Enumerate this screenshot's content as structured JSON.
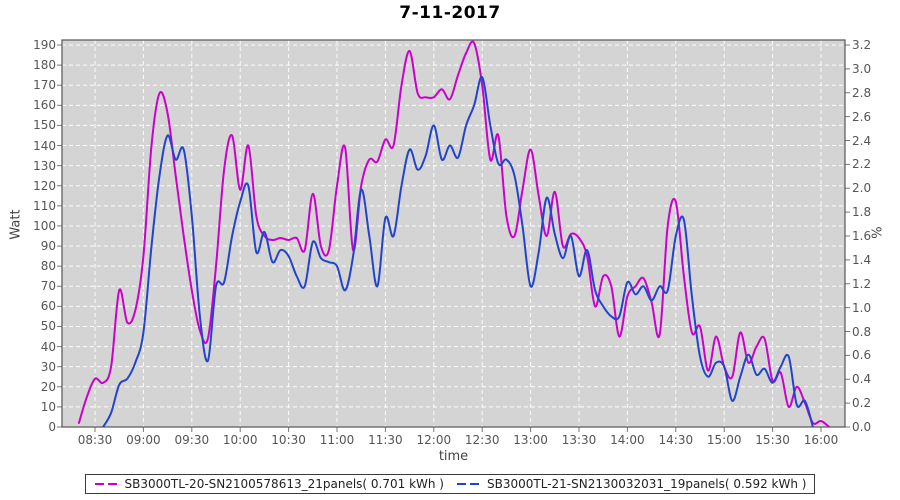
{
  "title": "7-11-2017",
  "axes": {
    "left_label": "Watt",
    "right_label": "%",
    "x_label": "time",
    "left_ticks": [
      "0",
      "10",
      "20",
      "30",
      "40",
      "50",
      "60",
      "70",
      "80",
      "90",
      "100",
      "110",
      "120",
      "130",
      "140",
      "150",
      "160",
      "170",
      "180",
      "190"
    ],
    "right_ticks": [
      "0.0",
      "0.2",
      "0.4",
      "0.6",
      "0.8",
      "1.0",
      "1.2",
      "1.4",
      "1.6",
      "1.8",
      "2.0",
      "2.2",
      "2.4",
      "2.6",
      "2.8",
      "3.0",
      "3.2"
    ],
    "x_ticks": [
      "08:30",
      "09:00",
      "09:30",
      "10:00",
      "10:30",
      "11:00",
      "11:30",
      "12:00",
      "12:30",
      "13:00",
      "13:30",
      "14:00",
      "14:30",
      "15:00",
      "15:30",
      "16:00"
    ]
  },
  "chart_data": {
    "type": "line",
    "title": "7-11-2017",
    "xlabel": "time",
    "ylabel_left": "Watt",
    "ylabel_right": "%",
    "ylim_left": [
      0,
      190
    ],
    "ylim_right": [
      0.0,
      3.2
    ],
    "x_axis_range": [
      "08:09",
      "16:17"
    ],
    "grid": true,
    "legend_position": "bottom",
    "plot_background": "#d4d4d4",
    "grid_color": "#ffffff",
    "x": [
      "08:20",
      "08:25",
      "08:30",
      "08:35",
      "08:40",
      "08:45",
      "08:50",
      "08:55",
      "09:00",
      "09:05",
      "09:10",
      "09:15",
      "09:20",
      "09:25",
      "09:30",
      "09:35",
      "09:40",
      "09:45",
      "09:50",
      "09:55",
      "10:00",
      "10:05",
      "10:10",
      "10:15",
      "10:20",
      "10:25",
      "10:30",
      "10:35",
      "10:40",
      "10:45",
      "10:50",
      "10:55",
      "11:00",
      "11:05",
      "11:10",
      "11:15",
      "11:20",
      "11:25",
      "11:30",
      "11:35",
      "11:40",
      "11:45",
      "11:50",
      "11:55",
      "12:00",
      "12:05",
      "12:10",
      "12:15",
      "12:20",
      "12:25",
      "12:30",
      "12:35",
      "12:40",
      "12:45",
      "12:50",
      "12:55",
      "13:00",
      "13:05",
      "13:10",
      "13:15",
      "13:20",
      "13:25",
      "13:30",
      "13:35",
      "13:40",
      "13:45",
      "13:50",
      "13:55",
      "14:00",
      "14:05",
      "14:10",
      "14:15",
      "14:20",
      "14:25",
      "14:30",
      "14:35",
      "14:40",
      "14:45",
      "14:50",
      "14:55",
      "15:00",
      "15:05",
      "15:10",
      "15:15",
      "15:20",
      "15:25",
      "15:30",
      "15:35",
      "15:40",
      "15:45",
      "15:50",
      "15:55",
      "16:00",
      "16:05"
    ],
    "series": [
      {
        "name": "SB3000TL-20-SN2100578613_21panels( 0.701 kWh )",
        "color": "#cc00cc",
        "unit": "W",
        "values": [
          2,
          15,
          24,
          22,
          30,
          68,
          52,
          58,
          85,
          140,
          166,
          156,
          125,
          95,
          68,
          48,
          44,
          80,
          128,
          145,
          118,
          140,
          105,
          95,
          93,
          94,
          93,
          94,
          88,
          116,
          90,
          88,
          120,
          139,
          88,
          120,
          133,
          132,
          143,
          140,
          170,
          187,
          166,
          164,
          164,
          168,
          163,
          175,
          186,
          191,
          170,
          133,
          145,
          105,
          95,
          118,
          138,
          115,
          95,
          117,
          90,
          96,
          94,
          85,
          60,
          75,
          70,
          45,
          65,
          70,
          74,
          62,
          46,
          100,
          112,
          75,
          47,
          50,
          28,
          45,
          30,
          25,
          47,
          32,
          40,
          44,
          23,
          27,
          10,
          20,
          12,
          2,
          3,
          0
        ]
      },
      {
        "name": "SB3000TL-21-SN2130032031_19panels( 0.592 kWh )",
        "color": "#2244cc",
        "unit": "W",
        "values": [
          null,
          null,
          null,
          0,
          7,
          21,
          24,
          32,
          47,
          90,
          125,
          145,
          133,
          138,
          105,
          55,
          33,
          70,
          72,
          95,
          112,
          120,
          87,
          97,
          82,
          88,
          85,
          75,
          70,
          92,
          84,
          82,
          80,
          68,
          85,
          118,
          95,
          70,
          104,
          95,
          120,
          138,
          128,
          135,
          150,
          133,
          140,
          134,
          150,
          160,
          174,
          150,
          131,
          133,
          125,
          100,
          70,
          87,
          114,
          96,
          84,
          95,
          75,
          88,
          68,
          60,
          55,
          55,
          72,
          66,
          70,
          63,
          70,
          68,
          95,
          103,
          65,
          35,
          25,
          32,
          30,
          13,
          25,
          36,
          26,
          29,
          22,
          30,
          35,
          11,
          13,
          0,
          null,
          null
        ]
      }
    ]
  }
}
